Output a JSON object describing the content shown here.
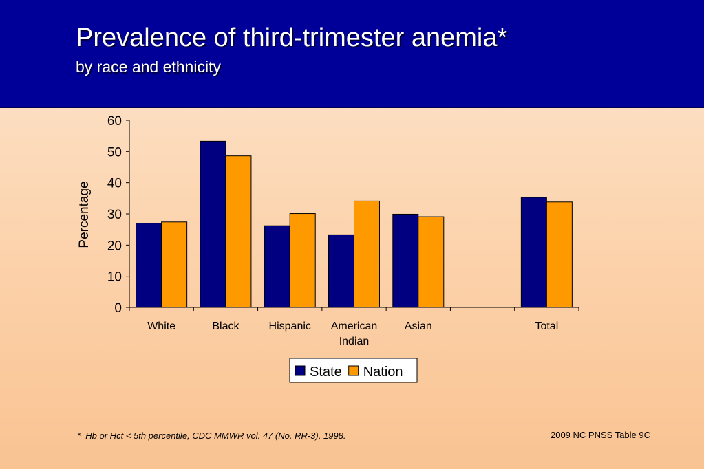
{
  "slide": {
    "title": "Prevalence of third-trimester anemia*",
    "subtitle": "by race and ethnicity",
    "footnote": "*  Hb or Hct < 5th percentile, CDC MMWR vol. 47 (No. RR-3), 1998.",
    "source": "2009 NC PNSS Table 9C"
  },
  "chart_data": {
    "type": "bar",
    "title": "Prevalence of third-trimester anemia*",
    "subtitle": "by race and ethnicity",
    "xlabel": "",
    "ylabel": "Percentage",
    "ylim": [
      0,
      60
    ],
    "yticks": [
      0,
      10,
      20,
      30,
      40,
      50,
      60
    ],
    "categories": [
      [
        "White"
      ],
      [
        "Black"
      ],
      [
        "Hispanic"
      ],
      [
        "American",
        "Indian"
      ],
      [
        "Asian"
      ],
      [
        ""
      ],
      [
        "Total"
      ]
    ],
    "series": [
      {
        "name": "State",
        "color": "#000080",
        "values": [
          27.0,
          53.3,
          26.2,
          23.3,
          29.9,
          null,
          35.3
        ]
      },
      {
        "name": "Nation",
        "color": "#ff9900",
        "values": [
          27.4,
          48.6,
          30.1,
          34.1,
          29.1,
          null,
          33.8
        ]
      }
    ],
    "grid": false,
    "legend": "bottom-center"
  }
}
